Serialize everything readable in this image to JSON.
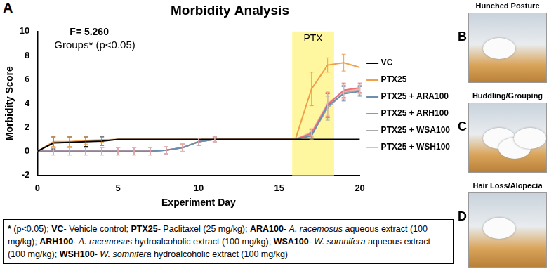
{
  "chart_data": {
    "type": "line",
    "panel": "A",
    "title": "Morbidity Analysis",
    "annotations": [
      "F= 5.260",
      "Groups* (p<0.05)"
    ],
    "x_label": "Experiment Day",
    "y_label": "Morbidity Score",
    "x": [
      0,
      1,
      2,
      3,
      4,
      5,
      6,
      7,
      8,
      9,
      10,
      11,
      12,
      13,
      14,
      15,
      16,
      17,
      18,
      19,
      20
    ],
    "xlim": [
      0,
      20
    ],
    "xticks": [
      0,
      5,
      10,
      15,
      20
    ],
    "ylim": [
      -2,
      10
    ],
    "yticks": [
      -2,
      0,
      2,
      4,
      6,
      8,
      10
    ],
    "grid": false,
    "legend": "right",
    "shaded_regions": [
      {
        "x0": 15.8,
        "x1": 18.4,
        "label": "PTX",
        "color": "#fff7a0"
      }
    ],
    "series": [
      {
        "name": "VC",
        "color": "#000000",
        "values": [
          0,
          0.7,
          0.75,
          0.8,
          0.85,
          1,
          1,
          1,
          1,
          1,
          1,
          1,
          1,
          1,
          1,
          1,
          1,
          1,
          1,
          1,
          1
        ],
        "errors": [
          null,
          0.5,
          0.45,
          0.4,
          0.35,
          null,
          null,
          null,
          null,
          null,
          null,
          null,
          null,
          null,
          null,
          null,
          null,
          null,
          null,
          null,
          null
        ]
      },
      {
        "name": "PTX25",
        "color": "#f0a04b",
        "values": [
          0,
          0.8,
          0.8,
          0.9,
          0.95,
          1,
          1,
          1,
          1,
          1,
          1,
          1,
          1,
          1,
          1,
          1,
          1,
          5.2,
          7.2,
          7.4,
          7.0
        ],
        "errors": [
          null,
          0.4,
          0.4,
          0.3,
          0.2,
          null,
          null,
          null,
          null,
          null,
          null,
          null,
          null,
          null,
          null,
          null,
          null,
          1.4,
          0.6,
          0.7,
          null
        ]
      },
      {
        "name": "PTX25 + ARA100",
        "color": "#6b8fae",
        "values": [
          0,
          0,
          0,
          0,
          0,
          0,
          0,
          0,
          0.1,
          0.3,
          0.8,
          1,
          1,
          1,
          1,
          1,
          1,
          1.3,
          3.8,
          4.8,
          5.0
        ],
        "errors": [
          null,
          0.3,
          0.3,
          0.3,
          0.3,
          0.3,
          0.3,
          0.3,
          0.3,
          0.3,
          0.3,
          0.2,
          null,
          null,
          null,
          null,
          null,
          0.3,
          1.0,
          0.6,
          0.4
        ]
      },
      {
        "name": "PTX25 + ARH100",
        "color": "#e8737a",
        "values": [
          0,
          0,
          0,
          0,
          0,
          0,
          0,
          0,
          0.1,
          0.3,
          0.8,
          1,
          1,
          1,
          1,
          1,
          1,
          1.5,
          3.9,
          5.1,
          5.3
        ],
        "errors": [
          null,
          0.3,
          0.3,
          0.3,
          0.3,
          0.3,
          0.3,
          0.3,
          0.3,
          0.3,
          0.3,
          0.2,
          null,
          null,
          null,
          null,
          null,
          0.3,
          1.0,
          0.6,
          0.4
        ]
      },
      {
        "name": "PTX25 + WSA100",
        "color": "#aaaaaa",
        "values": [
          0,
          0,
          0,
          0,
          0,
          0,
          0,
          0,
          0.1,
          0.3,
          0.8,
          1,
          1,
          1,
          1,
          1,
          1,
          1.4,
          3.6,
          4.9,
          5.1
        ],
        "errors": [
          null,
          0.3,
          0.3,
          0.3,
          0.3,
          0.3,
          0.3,
          0.3,
          0.3,
          0.3,
          0.3,
          0.2,
          null,
          null,
          null,
          null,
          null,
          0.3,
          1.0,
          0.6,
          0.4
        ]
      },
      {
        "name": "PTX25 + WSH100",
        "color": "#f4b6b0",
        "values": [
          0,
          0,
          0,
          0,
          0,
          0,
          0,
          0,
          0.1,
          0.3,
          0.8,
          1,
          1,
          1,
          1,
          1,
          1,
          1.6,
          4.0,
          5.0,
          5.2
        ],
        "errors": [
          null,
          0.3,
          0.3,
          0.3,
          0.3,
          0.3,
          0.3,
          0.3,
          0.3,
          0.3,
          0.3,
          0.2,
          null,
          null,
          null,
          null,
          null,
          0.3,
          1.0,
          0.6,
          0.4
        ]
      }
    ]
  },
  "footnote": [
    {
      "text": "*",
      "bold": true
    },
    {
      "text": " (p<0.05); "
    },
    {
      "text": "VC",
      "bold": true
    },
    {
      "text": "- Vehicle control; "
    },
    {
      "text": "PTX25",
      "bold": true
    },
    {
      "text": "- Paclitaxel (25 mg/kg); "
    },
    {
      "text": "ARA100",
      "bold": true
    },
    {
      "text": "- "
    },
    {
      "text": "A. racemosus",
      "italic": true
    },
    {
      "text": " aqueous extract (100 mg/kg); "
    },
    {
      "text": "ARH100",
      "bold": true
    },
    {
      "text": "- "
    },
    {
      "text": "A. racemosus",
      "italic": true
    },
    {
      "text": " hydroalcoholic extract (100 mg/kg); "
    },
    {
      "text": "WSA100",
      "bold": true
    },
    {
      "text": "- "
    },
    {
      "text": "W. somnifera",
      "italic": true
    },
    {
      "text": " aqueous extract (100 mg/kg); "
    },
    {
      "text": "WSH100",
      "bold": true
    },
    {
      "text": "- "
    },
    {
      "text": "W. somnifera",
      "italic": true
    },
    {
      "text": " hydroalcoholic extract (100 mg/kg)"
    }
  ],
  "side_panels": [
    {
      "label": "B",
      "title": "Hunched Posture"
    },
    {
      "label": "C",
      "title": "Huddling/Grouping"
    },
    {
      "label": "D",
      "title": "Hair Loss/Alopecia"
    }
  ]
}
